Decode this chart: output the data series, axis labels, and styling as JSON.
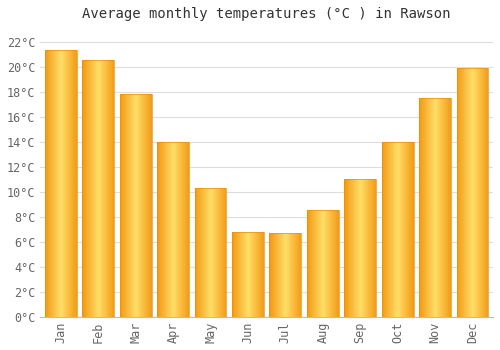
{
  "title": "Average monthly temperatures (°C ) in Rawson",
  "months": [
    "Jan",
    "Feb",
    "Mar",
    "Apr",
    "May",
    "Jun",
    "Jul",
    "Aug",
    "Sep",
    "Oct",
    "Nov",
    "Dec"
  ],
  "values": [
    21.3,
    20.5,
    17.8,
    14.0,
    10.3,
    6.8,
    6.7,
    8.5,
    11.0,
    14.0,
    17.5,
    19.9
  ],
  "bar_color_main": "#FFA500",
  "bar_color_light": "#FFD55A",
  "bar_color_dark": "#E8900A",
  "ylim": [
    0,
    23
  ],
  "yticks": [
    0,
    2,
    4,
    6,
    8,
    10,
    12,
    14,
    16,
    18,
    20,
    22
  ],
  "ytick_labels": [
    "0°C",
    "2°C",
    "4°C",
    "6°C",
    "8°C",
    "10°C",
    "12°C",
    "14°C",
    "16°C",
    "18°C",
    "20°C",
    "22°C"
  ],
  "background_color": "#ffffff",
  "plot_bg_color": "#ffffff",
  "grid_color": "#dddddd",
  "title_fontsize": 10,
  "tick_fontsize": 8.5,
  "bar_width": 0.85
}
